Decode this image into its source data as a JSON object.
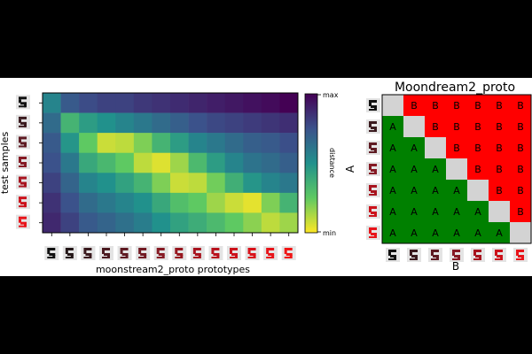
{
  "heatmap": {
    "xlabel": "moonstream2_proto prototypes",
    "ylabel": "test samples",
    "colorbar": {
      "title": "distance",
      "max_label": "max",
      "min_label": "min"
    },
    "colormap": [
      "#440154",
      "#3b528b",
      "#21918c",
      "#5ec962",
      "#fde725"
    ],
    "n_rows": 7,
    "n_cols": 14,
    "sample_colors": [
      "#111111",
      "#3a1a1e",
      "#5e1a22",
      "#861a24",
      "#a8141f",
      "#cc121b",
      "#e8141a"
    ],
    "proto_colors": [
      "#111111",
      "#231617",
      "#3a1a1e",
      "#4b1a20",
      "#5e1a22",
      "#711a23",
      "#861a24",
      "#97171f",
      "#a8141f",
      "#b8121c",
      "#cc121b",
      "#d9121a",
      "#e8141a",
      "#f01616"
    ]
  },
  "matrix": {
    "title": "Moondream2_proto",
    "xlabel": "B",
    "ylabel": "A",
    "upper_label": "B",
    "lower_label": "A",
    "colors": {
      "upper": "#ff0000",
      "lower": "#008000",
      "diagonal": "#d3d3d3"
    },
    "n": 7
  },
  "chart_data": [
    {
      "type": "heatmap",
      "title": "",
      "xlabel": "moonstream2_proto prototypes",
      "ylabel": "test samples",
      "colorbar_label": "distance",
      "colorbar_ticks": [
        "min",
        "max"
      ],
      "value_scale": "normalized 0 (min) to 1 (max)",
      "rows": 7,
      "cols": 14,
      "values": [
        [
          0.55,
          0.72,
          0.77,
          0.8,
          0.8,
          0.83,
          0.85,
          0.87,
          0.89,
          0.91,
          0.93,
          0.95,
          0.97,
          1.0
        ],
        [
          0.65,
          0.35,
          0.45,
          0.5,
          0.55,
          0.6,
          0.65,
          0.7,
          0.75,
          0.78,
          0.8,
          0.82,
          0.84,
          0.86
        ],
        [
          0.72,
          0.48,
          0.25,
          0.08,
          0.1,
          0.2,
          0.35,
          0.45,
          0.55,
          0.6,
          0.65,
          0.7,
          0.72,
          0.76
        ],
        [
          0.75,
          0.6,
          0.4,
          0.33,
          0.25,
          0.1,
          0.05,
          0.15,
          0.32,
          0.45,
          0.55,
          0.62,
          0.65,
          0.7
        ],
        [
          0.8,
          0.68,
          0.55,
          0.5,
          0.43,
          0.35,
          0.2,
          0.08,
          0.1,
          0.22,
          0.37,
          0.48,
          0.55,
          0.6
        ],
        [
          0.85,
          0.75,
          0.65,
          0.6,
          0.55,
          0.5,
          0.4,
          0.3,
          0.25,
          0.15,
          0.08,
          0.04,
          0.2,
          0.35
        ],
        [
          0.88,
          0.8,
          0.72,
          0.68,
          0.63,
          0.58,
          0.5,
          0.43,
          0.38,
          0.32,
          0.25,
          0.18,
          0.1,
          0.15
        ]
      ]
    },
    {
      "type": "table",
      "title": "Moondream2_proto",
      "xlabel": "B",
      "ylabel": "A",
      "cells": [
        [
          "",
          "B",
          "B",
          "B",
          "B",
          "B",
          "B"
        ],
        [
          "A",
          "",
          "B",
          "B",
          "B",
          "B",
          "B"
        ],
        [
          "A",
          "A",
          "",
          "B",
          "B",
          "B",
          "B"
        ],
        [
          "A",
          "A",
          "A",
          "",
          "B",
          "B",
          "B"
        ],
        [
          "A",
          "A",
          "A",
          "A",
          "",
          "B",
          "B"
        ],
        [
          "A",
          "A",
          "A",
          "A",
          "A",
          "",
          "B"
        ],
        [
          "A",
          "A",
          "A",
          "A",
          "A",
          "A",
          ""
        ]
      ]
    }
  ]
}
